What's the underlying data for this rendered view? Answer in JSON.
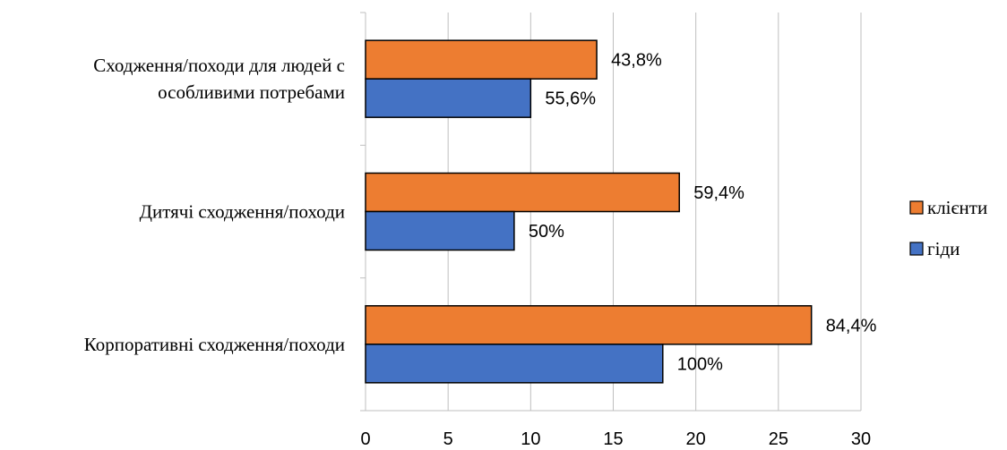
{
  "chart_data": {
    "type": "bar",
    "orientation": "horizontal",
    "title": "",
    "xlabel": "",
    "ylabel": "",
    "xlim": [
      0,
      30
    ],
    "xticks": [
      "0",
      "5",
      "10",
      "15",
      "20",
      "25",
      "30"
    ],
    "grid": true,
    "legend_position": "right",
    "categories": [
      "Сходження/походи для людей с особливими потребами",
      "Дитячі сходження/походи",
      "Корпоративні сходження/походи"
    ],
    "category_lines": [
      [
        "Сходження/походи для людей с",
        "особливими потребами"
      ],
      [
        "Дитячі сходження/походи"
      ],
      [
        "Корпоративні сходження/походи"
      ]
    ],
    "series": [
      {
        "name": "клієнти",
        "color": "#ED7D31",
        "values": [
          14,
          19,
          27
        ],
        "labels": [
          "43,8%",
          "59,4%",
          "84,4%"
        ]
      },
      {
        "name": "гіди",
        "color": "#4472C4",
        "values": [
          10,
          9,
          18
        ],
        "labels": [
          "55,6%",
          "50%",
          "100%"
        ]
      }
    ]
  }
}
